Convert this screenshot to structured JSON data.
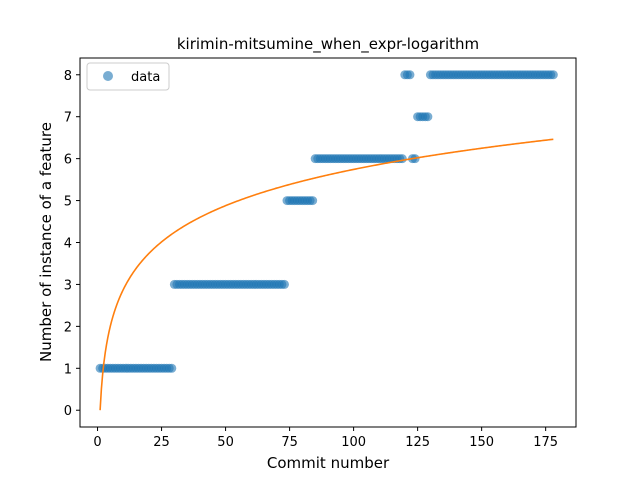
{
  "chart_data": {
    "type": "scatter",
    "title": "kirimin-mitsumine_when_expr-logarithm",
    "xlabel": "Commit number",
    "ylabel": "Number of instance of a feature",
    "xlim": [
      -6.85,
      186.85
    ],
    "ylim": [
      -0.4,
      8.4
    ],
    "xticks": [
      0,
      25,
      50,
      75,
      100,
      125,
      150,
      175
    ],
    "yticks": [
      0,
      1,
      2,
      3,
      4,
      5,
      6,
      7,
      8
    ],
    "grid": false,
    "legend": {
      "position": "top-left",
      "entries": [
        "data"
      ]
    },
    "series": [
      {
        "name": "data",
        "kind": "scatter",
        "color": "#1f77b4",
        "alpha": 0.6,
        "segments": [
          {
            "x_start": 1,
            "x_end": 29,
            "y": 1
          },
          {
            "x_start": 30,
            "x_end": 73,
            "y": 3
          },
          {
            "x_start": 74,
            "x_end": 84,
            "y": 5
          },
          {
            "x_start": 85,
            "x_end": 119,
            "y": 6
          },
          {
            "x_start": 120,
            "x_end": 122,
            "y": 8
          },
          {
            "x_start": 123,
            "x_end": 124,
            "y": 6
          },
          {
            "x_start": 125,
            "x_end": 129,
            "y": 7
          },
          {
            "x_start": 130,
            "x_end": 178,
            "y": 8
          }
        ]
      },
      {
        "name": "",
        "kind": "line",
        "color": "#ff7f0e",
        "model": "logarithmic",
        "coefficient": 1.247,
        "x_range": [
          1,
          178
        ]
      }
    ]
  }
}
